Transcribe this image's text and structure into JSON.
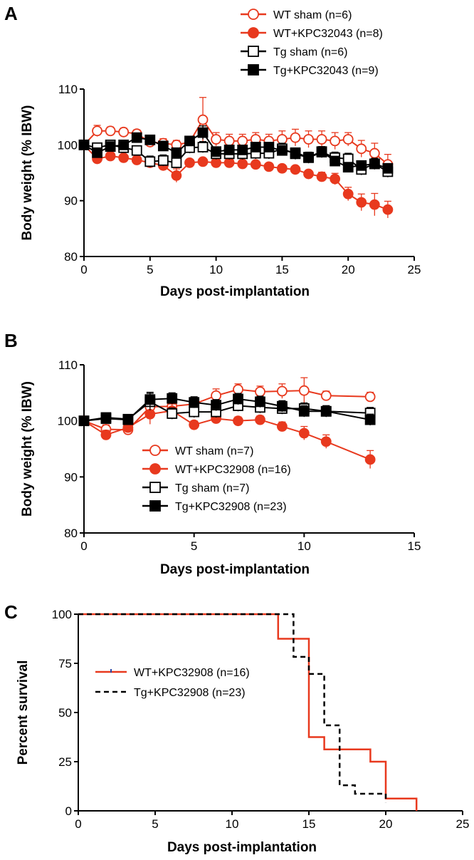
{
  "colors": {
    "wt": "#e8391e",
    "tg": "#000000",
    "censor_mark": "#2b4aa8"
  },
  "chart_data": [
    {
      "panel": "A",
      "type": "line",
      "xlabel": "Days post-implantation",
      "ylabel": "Body weight (% IBW)",
      "xlim": [
        0,
        25
      ],
      "ylim": [
        80,
        110
      ],
      "xticks": [
        0,
        5,
        10,
        15,
        20,
        25
      ],
      "yticks": [
        80,
        90,
        100,
        110
      ],
      "legend_position": "top-right",
      "series": [
        {
          "name": "WT sham (n=6)",
          "color_key": "wt",
          "marker": "circle",
          "filled": false,
          "x": [
            0,
            1,
            2,
            3,
            4,
            5,
            6,
            7,
            8,
            9,
            10,
            11,
            12,
            13,
            14,
            15,
            16,
            17,
            18,
            19,
            20,
            21,
            22,
            23
          ],
          "values": [
            100,
            102.5,
            102.5,
            102.3,
            102,
            100.5,
            100.3,
            100,
            100.5,
            104.5,
            101,
            100.7,
            100.7,
            101,
            100.7,
            101,
            101.3,
            101,
            101,
            100.7,
            101,
            99.3,
            98.5,
            96.5
          ],
          "err": [
            0.5,
            1,
            0.7,
            0.7,
            0.7,
            0.8,
            0.8,
            0.8,
            0.8,
            4,
            1.2,
            1.2,
            1.2,
            1.2,
            1.2,
            1.5,
            1.5,
            1.5,
            1.5,
            1.5,
            1.2,
            1.5,
            1.8,
            1.8
          ]
        },
        {
          "name": "WT+KPC32043 (n=8)",
          "color_key": "wt",
          "marker": "circle",
          "filled": true,
          "x": [
            0,
            1,
            2,
            3,
            4,
            5,
            6,
            7,
            8,
            9,
            10,
            11,
            12,
            13,
            14,
            15,
            16,
            17,
            18,
            19,
            20,
            21,
            22,
            23
          ],
          "values": [
            100,
            97.5,
            98,
            97.7,
            97.3,
            96.8,
            96.3,
            94.5,
            96.8,
            97,
            96.8,
            96.8,
            96.6,
            96.5,
            96.1,
            95.8,
            95.6,
            94.8,
            94.3,
            93.9,
            91.2,
            89.7,
            89.3,
            88.4
          ],
          "err": [
            0.3,
            0.6,
            0.6,
            0.6,
            0.6,
            0.8,
            0.8,
            1.2,
            0.6,
            0.6,
            0.6,
            0.6,
            0.6,
            0.6,
            0.6,
            0.6,
            0.6,
            0.6,
            0.8,
            1,
            1.2,
            1.5,
            2,
            1.5
          ]
        },
        {
          "name": "Tg sham (n=6)",
          "color_key": "tg",
          "marker": "square",
          "filled": false,
          "x": [
            0,
            1,
            2,
            3,
            4,
            5,
            6,
            7,
            8,
            9,
            10,
            11,
            12,
            13,
            14,
            15,
            16,
            17,
            18,
            19,
            20,
            21,
            22,
            23
          ],
          "values": [
            100,
            99.5,
            100,
            99.5,
            99,
            97,
            97.2,
            96.8,
            99.5,
            99.6,
            98.4,
            98.4,
            98.4,
            98.5,
            98.5,
            99.3,
            98.4,
            97.7,
            98.7,
            97.7,
            97.5,
            95.6,
            96.6,
            95.2
          ],
          "err": [
            0.3,
            0.8,
            0.8,
            0.8,
            0.8,
            1,
            1,
            1,
            1,
            1,
            1,
            1,
            1,
            1,
            1,
            1,
            1,
            1,
            1,
            1,
            1,
            1,
            1,
            1
          ]
        },
        {
          "name": "Tg+KPC32043 (n=9)",
          "color_key": "tg",
          "marker": "square",
          "filled": true,
          "x": [
            0,
            1,
            2,
            3,
            4,
            5,
            6,
            7,
            8,
            9,
            10,
            11,
            12,
            13,
            14,
            15,
            16,
            17,
            18,
            19,
            20,
            21,
            22,
            23
          ],
          "values": [
            100,
            98.6,
            99.7,
            100,
            101.3,
            100.9,
            99.8,
            98.6,
            100.7,
            102.2,
            98.8,
            99.1,
            99.1,
            99.6,
            99.6,
            99,
            98.6,
            97.8,
            98.8,
            97.1,
            96,
            96.3,
            96.6,
            95.8
          ],
          "err": [
            0.3,
            0.7,
            0.7,
            0.7,
            0.7,
            0.8,
            0.8,
            0.8,
            0.8,
            1.2,
            0.8,
            0.8,
            0.8,
            0.8,
            0.8,
            0.8,
            0.8,
            0.8,
            0.8,
            0.8,
            0.8,
            0.8,
            0.8,
            0.8
          ]
        }
      ]
    },
    {
      "panel": "B",
      "type": "line",
      "xlabel": "Days post-implantation",
      "ylabel": "Body weight (% IBW)",
      "xlim": [
        0,
        15
      ],
      "ylim": [
        80,
        110
      ],
      "xticks": [
        0,
        5,
        10,
        15
      ],
      "yticks": [
        80,
        90,
        100,
        110
      ],
      "legend_position": "bottom-center",
      "series": [
        {
          "name": "WT sham (n=7)",
          "color_key": "wt",
          "marker": "circle",
          "filled": false,
          "x": [
            0,
            1,
            2,
            3,
            4,
            5,
            6,
            7,
            8,
            9,
            10,
            11,
            13
          ],
          "values": [
            100,
            98.5,
            98.4,
            102.5,
            102.6,
            103,
            104.5,
            105.6,
            105.2,
            105.3,
            105.4,
            104.5,
            104.3
          ],
          "err": [
            0.3,
            0.8,
            0.8,
            1.5,
            1.2,
            1.2,
            1.2,
            1,
            1,
            1.3,
            2.3,
            0.8,
            0.8
          ]
        },
        {
          "name": "WT+KPC32908 (n=16)",
          "color_key": "wt",
          "marker": "circle",
          "filled": true,
          "x": [
            0,
            1,
            2,
            3,
            4,
            5,
            6,
            7,
            8,
            9,
            10,
            11,
            13
          ],
          "values": [
            100,
            97.5,
            98.8,
            101.2,
            101.8,
            99.3,
            100.4,
            100,
            100.2,
            99,
            97.8,
            96.3,
            93.1
          ],
          "err": [
            0.3,
            0.8,
            0.8,
            1.8,
            1.2,
            0.7,
            0.7,
            0.7,
            0.7,
            0.8,
            1.2,
            1.2,
            1.6
          ]
        },
        {
          "name": "Tg sham (n=7)",
          "color_key": "tg",
          "marker": "square",
          "filled": false,
          "x": [
            0,
            1,
            2,
            3,
            4,
            5,
            6,
            7,
            8,
            9,
            10,
            11,
            13
          ],
          "values": [
            100,
            100.6,
            100.3,
            103.4,
            101.3,
            101.6,
            101.6,
            102.7,
            102.4,
            102.2,
            102.2,
            101.7,
            101.4
          ],
          "err": [
            0.3,
            0.8,
            0.8,
            1.5,
            1,
            1,
            1,
            1,
            1,
            1,
            1,
            1,
            1
          ]
        },
        {
          "name": "Tg+KPC32908 (n=23)",
          "color_key": "tg",
          "marker": "square",
          "filled": true,
          "x": [
            0,
            1,
            2,
            3,
            4,
            5,
            6,
            7,
            8,
            9,
            10,
            11,
            13
          ],
          "values": [
            100,
            100.4,
            100.2,
            103.8,
            104,
            103.3,
            102.8,
            103.9,
            103.4,
            102.6,
            101.7,
            101.7,
            100.2
          ],
          "err": [
            0.3,
            0.8,
            0.8,
            1.3,
            1,
            1,
            1,
            1,
            1,
            1,
            1,
            1,
            1
          ]
        }
      ]
    },
    {
      "panel": "C",
      "type": "line",
      "xlabel": "Days post-implantation",
      "ylabel": "Percent survival",
      "xlim": [
        0,
        25
      ],
      "ylim": [
        0,
        100
      ],
      "xticks": [
        0,
        5,
        10,
        15,
        20,
        25
      ],
      "yticks": [
        0,
        25,
        50,
        75,
        100
      ],
      "legend_position": "center-left",
      "series": [
        {
          "name": "WT+KPC32908 (n=16)",
          "color_key": "wt",
          "style": "solid",
          "x": [
            0,
            13,
            13,
            15,
            15,
            16,
            16,
            19,
            19,
            20,
            20,
            22,
            22
          ],
          "values": [
            100,
            100,
            87.5,
            87.5,
            37.5,
            37.5,
            31.25,
            31.25,
            25,
            25,
            6.25,
            6.25,
            0
          ]
        },
        {
          "name": "Tg+KPC32908 (n=23)",
          "color_key": "tg",
          "style": "dashed",
          "x": [
            0,
            14,
            14,
            15,
            15,
            16,
            16,
            17,
            17,
            18,
            18,
            20,
            20
          ],
          "values": [
            100,
            100,
            78.3,
            78.3,
            69.6,
            69.6,
            43.5,
            43.5,
            13,
            13,
            8.7,
            8.7,
            4.3
          ]
        }
      ]
    }
  ]
}
